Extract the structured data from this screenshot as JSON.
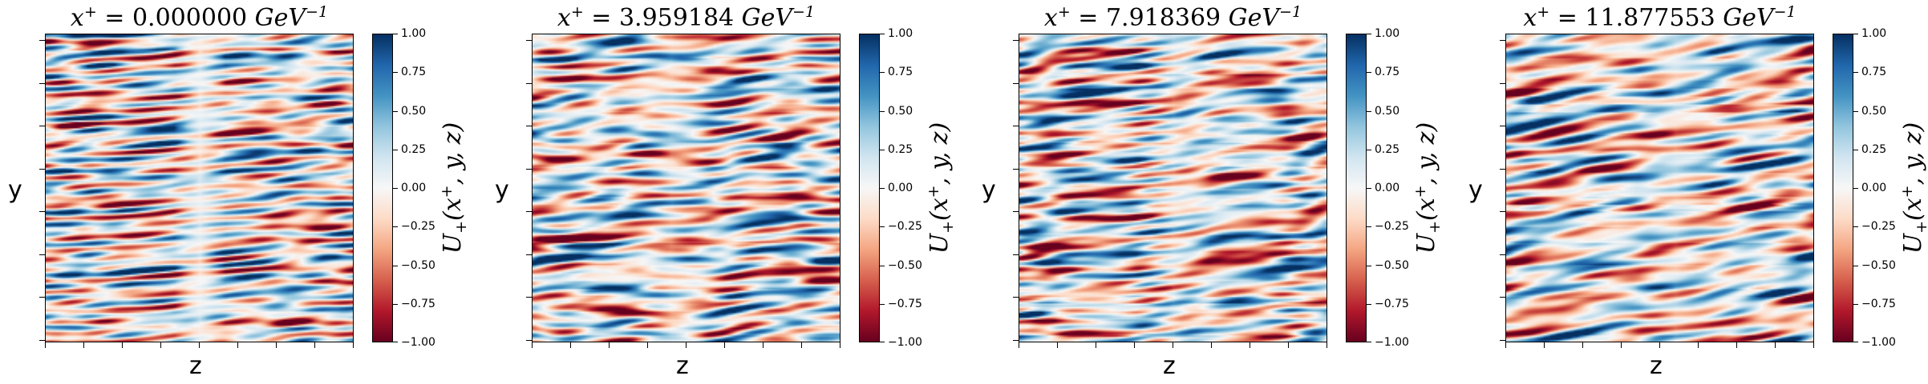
{
  "chart_data": [
    {
      "type": "heatmap",
      "title_var": "x",
      "title_sup": "+",
      "title_value": " = 0.000000 ",
      "title_unit": "GeV",
      "title_unit_sup": "−1",
      "xlabel": "z",
      "ylabel": "y",
      "colorbar_label": "U+(x+, y, z)",
      "colorbar_ticks": [
        "1.00",
        "0.75",
        "0.50",
        "0.25",
        "0.00",
        "−0.25",
        "−0.50",
        "−0.75",
        "−1.00"
      ],
      "colorbar_range": [
        -1,
        1
      ],
      "colormap": "RdBu",
      "pattern_seed": 1
    },
    {
      "type": "heatmap",
      "title_var": "x",
      "title_sup": "+",
      "title_value": " = 3.959184 ",
      "title_unit": "GeV",
      "title_unit_sup": "−1",
      "xlabel": "z",
      "ylabel": "y",
      "colorbar_label": "U+(x+, y, z)",
      "colorbar_ticks": [
        "1.00",
        "0.75",
        "0.50",
        "0.25",
        "0.00",
        "−0.25",
        "−0.50",
        "−0.75",
        "−1.00"
      ],
      "colorbar_range": [
        -1,
        1
      ],
      "colormap": "RdBu",
      "pattern_seed": 2
    },
    {
      "type": "heatmap",
      "title_var": "x",
      "title_sup": "+",
      "title_value": " = 7.918369 ",
      "title_unit": "GeV",
      "title_unit_sup": "−1",
      "xlabel": "z",
      "ylabel": "y",
      "colorbar_label": "U+(x+, y, z)",
      "colorbar_ticks": [
        "1.00",
        "0.75",
        "0.50",
        "0.25",
        "0.00",
        "−0.25",
        "−0.50",
        "−0.75",
        "−1.00"
      ],
      "colorbar_range": [
        -1,
        1
      ],
      "colormap": "RdBu",
      "pattern_seed": 3
    },
    {
      "type": "heatmap",
      "title_var": "x",
      "title_sup": "+",
      "title_value": " = 11.877553 ",
      "title_unit": "GeV",
      "title_unit_sup": "−1",
      "xlabel": "z",
      "ylabel": "y",
      "colorbar_label": "U+(x+, y, z)",
      "colorbar_ticks": [
        "1.00",
        "0.75",
        "0.50",
        "0.25",
        "0.00",
        "−0.25",
        "−0.50",
        "−0.75",
        "−1.00"
      ],
      "colorbar_range": [
        -1,
        1
      ],
      "colormap": "RdBu",
      "pattern_seed": 4
    }
  ]
}
